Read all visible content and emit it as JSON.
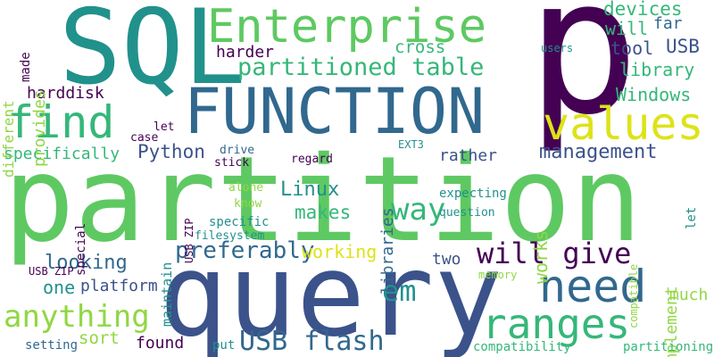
{
  "palette": {
    "background": "#ffffff",
    "dark_purple": "#440154",
    "indigo": "#3b528b",
    "blue": "#31688e",
    "teal": "#21918c",
    "sea_green": "#35b779",
    "green": "#5ec962",
    "lime": "#90d743",
    "yellow": "#dde318"
  },
  "words": {
    "partition": "partition",
    "query": "query",
    "sql": "SQL",
    "p": "p",
    "function": "FUNCTION",
    "enterprise": "Enterprise",
    "find": "find",
    "values": "values",
    "need": "need",
    "ranges": "ranges",
    "partitioned_table": "partitioned table",
    "anything": "anything",
    "usb_flash": "USB flash",
    "will_give": "will give",
    "preferably": "preferably",
    "way": "way",
    "em": "em",
    "python": "Python",
    "linux": "Linux",
    "makes": "makes",
    "management": "management",
    "devices": "devices",
    "far": "far",
    "will": "will",
    "usb": "USB",
    "tool": "tool",
    "library": "library",
    "windows": "Windows",
    "cross": "cross",
    "harder": "harder",
    "harddisk": "harddisk",
    "specifically": "specifically",
    "looking": "looking",
    "working": "working",
    "one": "one",
    "platform": "platform",
    "two": "two",
    "sort": "sort",
    "found": "found",
    "put": "put",
    "rather": "rather",
    "works": "works",
    "libraries": "libraries",
    "maintain": "maintain",
    "implement": "implement",
    "much": "much",
    "compatibility": "compatibility",
    "partitioning": "partitioning",
    "setting": "setting",
    "usb_zip": "USB ZIP",
    "memory": "memory",
    "compatible": "compatible",
    "expecting": "expecting",
    "question": "question",
    "specific": "specific",
    "filesystem": "filesystem",
    "know": "know",
    "alone": "alone",
    "regard": "regard",
    "drive": "drive",
    "stick": "stick",
    "let": "let",
    "case": "case",
    "ext3": "EXT3",
    "users": "users",
    "different": "different",
    "made": "made",
    "provides": "provides",
    "special": "special"
  }
}
